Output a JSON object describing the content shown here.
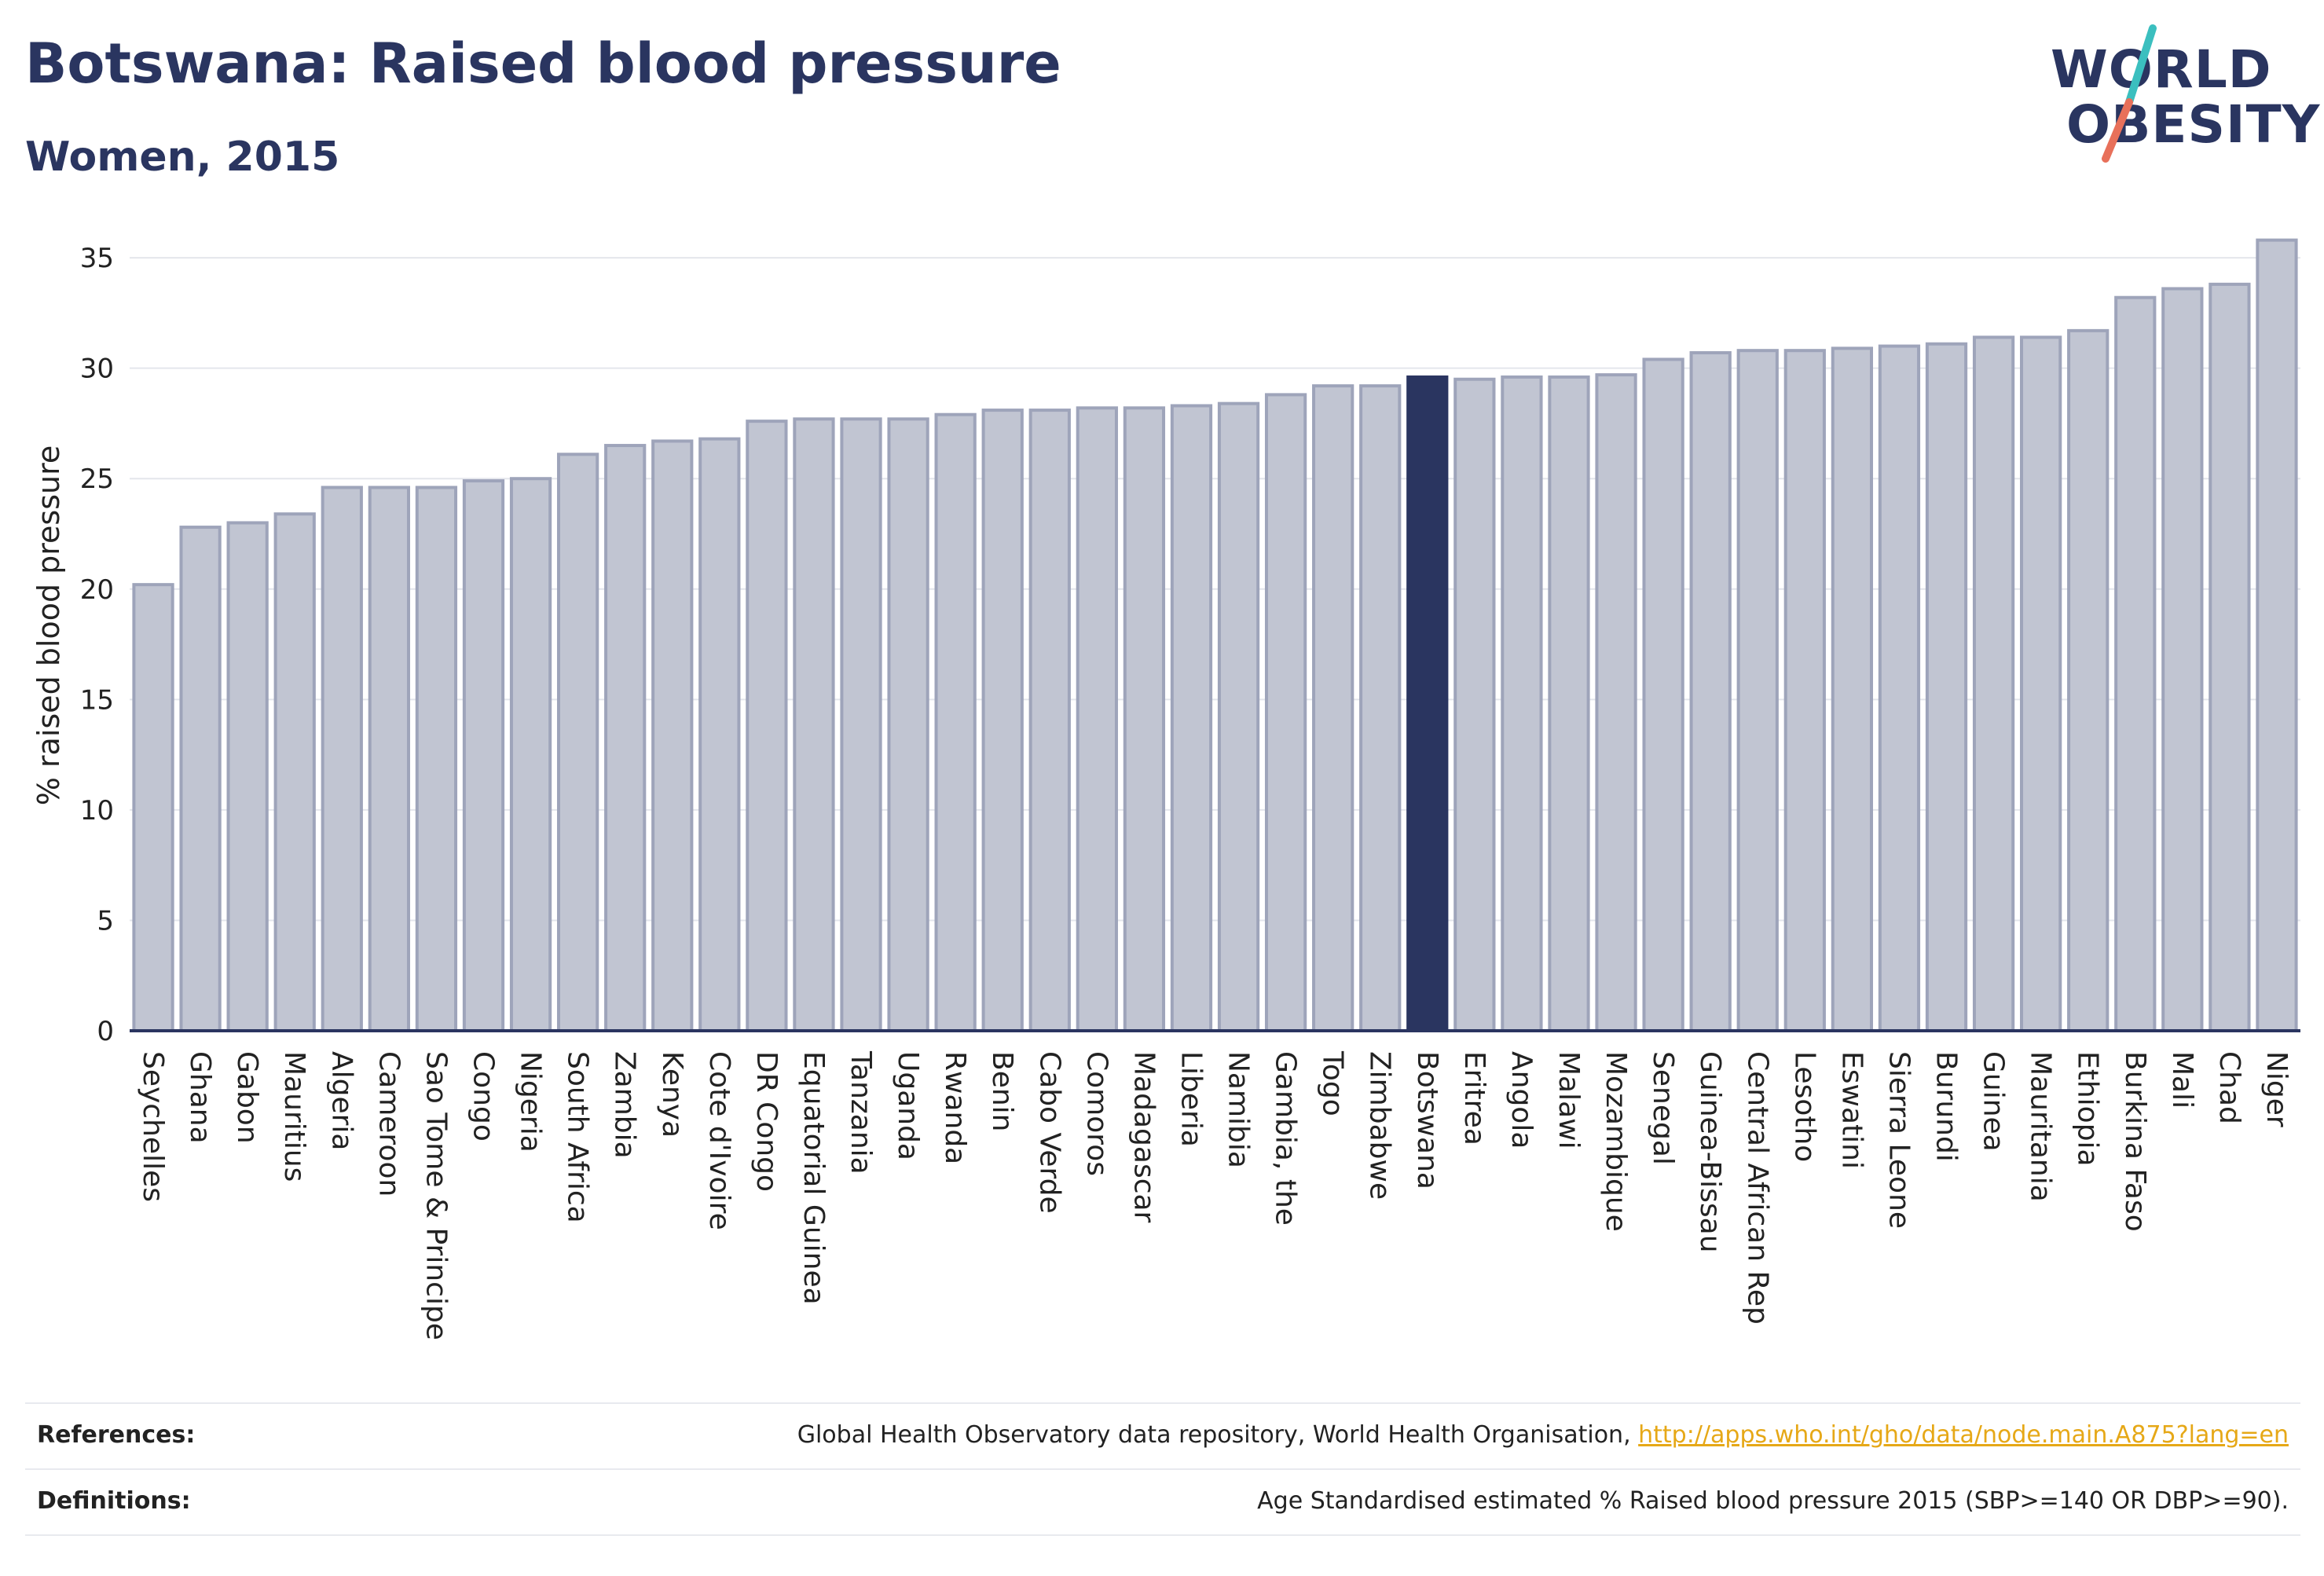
{
  "header": {
    "title": "Botswana: Raised blood pressure",
    "subtitle": "Women, 2015"
  },
  "logo": {
    "line1": "WORLD",
    "line2": "OBESITY",
    "accent_teal": "#3bbfbf",
    "accent_coral": "#e8705a"
  },
  "colors": {
    "bar": "#c1c5d2",
    "bar_border": "#9ea4ba",
    "highlight": "#2a3560",
    "grid": "#e4e6ec",
    "axis": "#2a3560"
  },
  "chart_data": {
    "type": "bar",
    "ylabel": "% raised blood pressure",
    "ylim": [
      0,
      36
    ],
    "yticks": [
      0,
      5,
      10,
      15,
      20,
      25,
      30,
      35
    ],
    "grid": true,
    "highlight": "Botswana",
    "categories": [
      "Seychelles",
      "Ghana",
      "Gabon",
      "Mauritius",
      "Algeria",
      "Cameroon",
      "Sao Tome & Principe",
      "Congo",
      "Nigeria",
      "South Africa",
      "Zambia",
      "Kenya",
      "Cote d'Ivoire",
      "DR Congo",
      "Equatorial Guinea",
      "Tanzania",
      "Uganda",
      "Rwanda",
      "Benin",
      "Cabo Verde",
      "Comoros",
      "Madagascar",
      "Liberia",
      "Namibia",
      "Gambia, the",
      "Togo",
      "Zimbabwe",
      "Botswana",
      "Eritrea",
      "Angola",
      "Malawi",
      "Mozambique",
      "Senegal",
      "Guinea-Bissau",
      "Central African Rep",
      "Lesotho",
      "Eswatini",
      "Sierra Leone",
      "Burundi",
      "Guinea",
      "Mauritania",
      "Ethiopia",
      "Burkina Faso",
      "Mali",
      "Chad",
      "Niger"
    ],
    "values": [
      20.2,
      22.8,
      23.0,
      23.4,
      24.6,
      24.6,
      24.6,
      24.9,
      25.0,
      26.1,
      26.5,
      26.7,
      26.8,
      27.6,
      27.7,
      27.7,
      27.7,
      27.9,
      28.1,
      28.1,
      28.2,
      28.2,
      28.3,
      28.4,
      28.8,
      29.2,
      29.2,
      29.6,
      29.5,
      29.6,
      29.6,
      29.7,
      30.4,
      30.7,
      30.8,
      30.8,
      30.9,
      31.0,
      31.1,
      31.4,
      31.4,
      31.7,
      33.2,
      33.6,
      33.8,
      35.8
    ]
  },
  "footer": {
    "references_label": "References:",
    "references_text": "Global Health Observatory data repository, World Health Organisation, ",
    "references_link": "http://apps.who.int/gho/data/node.main.A875?lang=en",
    "definitions_label": "Definitions:",
    "definitions_text": "Age Standardised estimated % Raised blood pressure 2015 (SBP>=140 OR DBP>=90)."
  }
}
